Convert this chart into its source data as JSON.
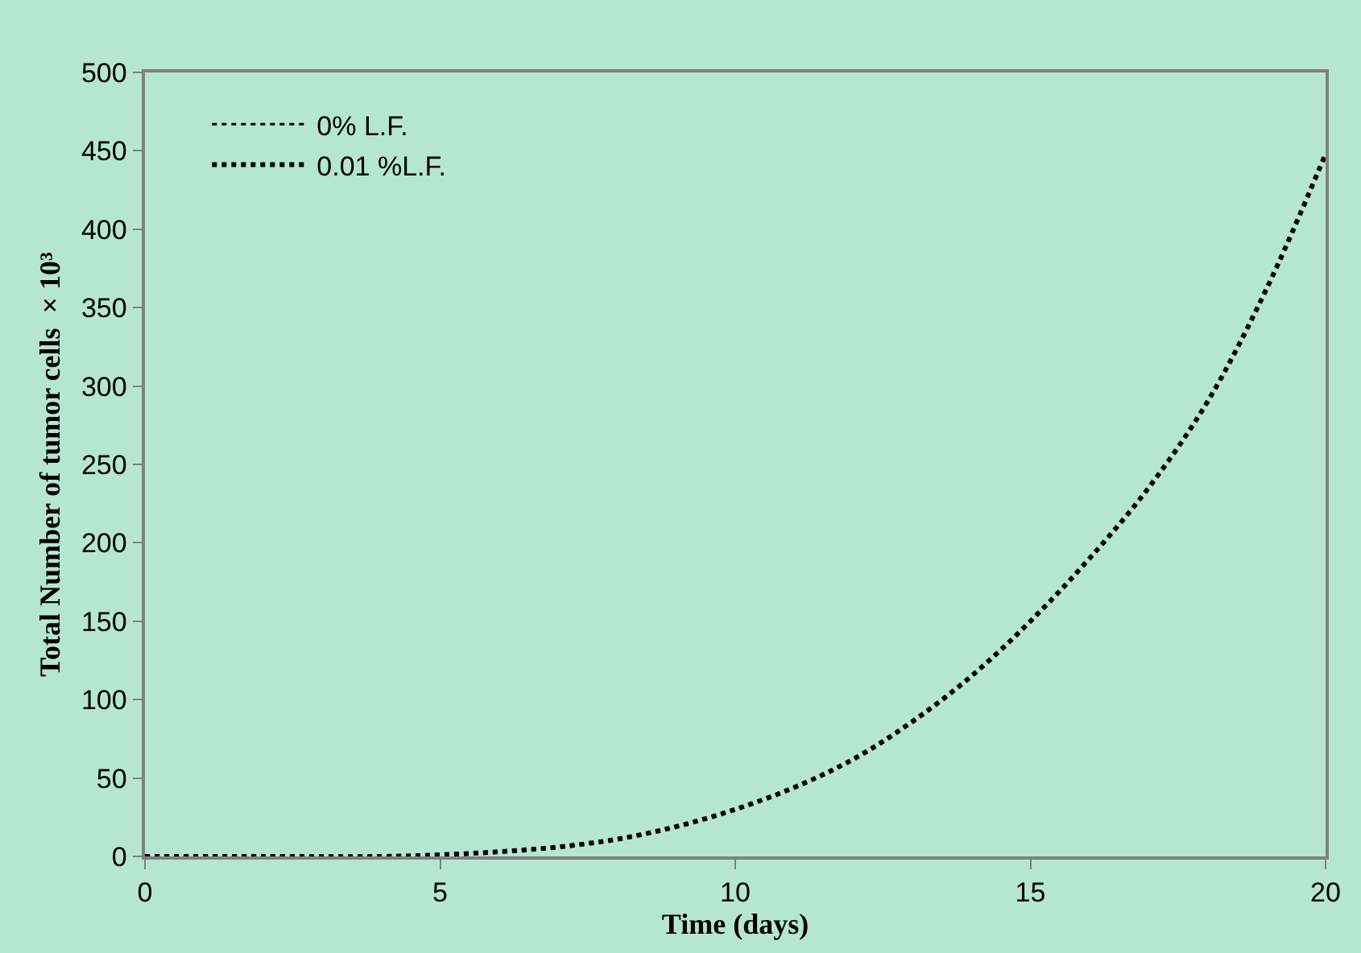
{
  "chart_data": {
    "type": "line",
    "xlabel": "Time (days)",
    "ylabel": "Total Number of tumor cells  × 10³",
    "x": [
      0,
      2,
      4,
      5,
      6,
      7,
      8,
      9,
      10,
      11,
      12,
      13,
      14,
      15,
      16,
      17,
      18,
      19,
      20
    ],
    "series": [
      {
        "name": "0% L.F.",
        "color": "#000000",
        "line_style": "dotted",
        "values": [
          0,
          0,
          0,
          1,
          3,
          6,
          11,
          19,
          30,
          44,
          62,
          86,
          115,
          150,
          190,
          235,
          290,
          362,
          448
        ]
      },
      {
        "name": "0.01 %L.F.",
        "color": "#000000",
        "line_style": "dotted",
        "values": [
          0,
          0,
          0,
          1,
          3,
          6,
          11,
          19,
          30,
          44,
          62,
          86,
          115,
          150,
          190,
          235,
          290,
          362,
          448
        ]
      }
    ],
    "xlim": [
      0,
      20
    ],
    "xticks": [
      0,
      5,
      10,
      15,
      20
    ],
    "ylim": [
      0,
      500
    ],
    "yticks": [
      0,
      50,
      100,
      150,
      200,
      250,
      300,
      350,
      400,
      450,
      500
    ],
    "grid": false,
    "legend": "top left",
    "marker": "none"
  }
}
